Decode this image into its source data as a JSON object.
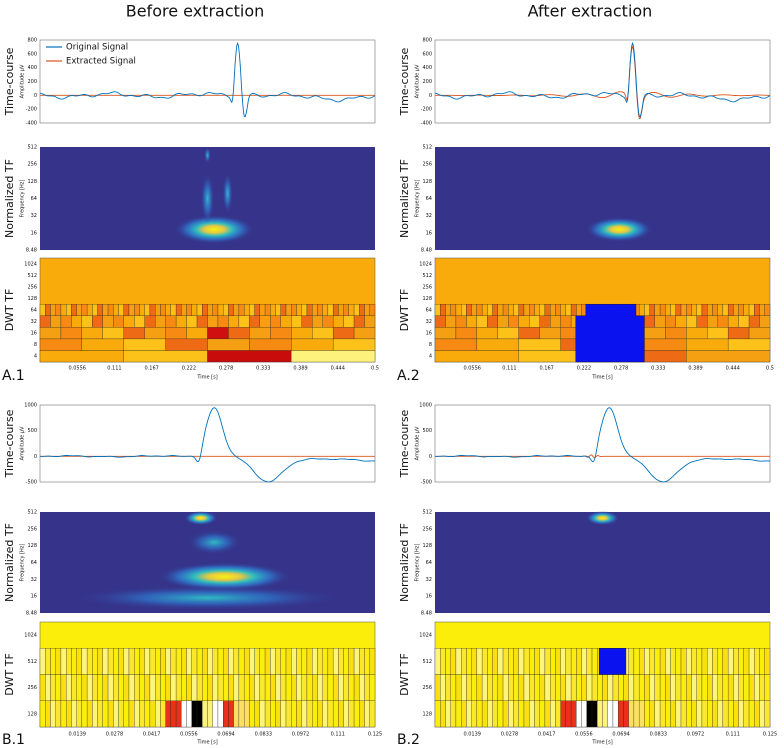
{
  "columns": [
    "Before extraction",
    "After extraction"
  ],
  "row_labels": {
    "time": "Time-course",
    "ntf": "Normalized TF",
    "dwt": "DWT TF"
  },
  "axis_titles": {
    "amplitude": "Amplitude μV",
    "frequency": "Frequency [Hz]",
    "time": "Time [s]"
  },
  "legend": [
    "Original Signal",
    "Extracted Signal"
  ],
  "panels": {
    "A": {
      "labels": [
        "A.1",
        "A.2"
      ],
      "amp_ticks": [
        "800",
        "600",
        "400",
        "200",
        "0",
        "-200",
        "-400"
      ],
      "freq_ticks": [
        "512",
        "256",
        "128",
        "64",
        "32",
        "16",
        "8.48"
      ],
      "dwt_ticks": [
        "1024",
        "512",
        "256",
        "128",
        "64",
        "32",
        "16",
        "8",
        "4"
      ],
      "time_ticks": [
        "0.0556",
        "0.111",
        "0.167",
        "0.222",
        "0.278",
        "0.333",
        "0.389",
        "0.444",
        "0.5"
      ]
    },
    "B": {
      "labels": [
        "B.1",
        "B.2"
      ],
      "amp_ticks": [
        "1000",
        "500",
        "0",
        "-500"
      ],
      "freq_ticks": [
        "512",
        "256",
        "128",
        "64",
        "32",
        "16",
        "8.48"
      ],
      "dwt_ticks": [
        "1024",
        "512",
        "256",
        "128"
      ],
      "time_ticks": [
        "0.0139",
        "0.0278",
        "0.0417",
        "0.0556",
        "0.0694",
        "0.0833",
        "0.0972",
        "0.111",
        "0.125"
      ]
    }
  }
}
